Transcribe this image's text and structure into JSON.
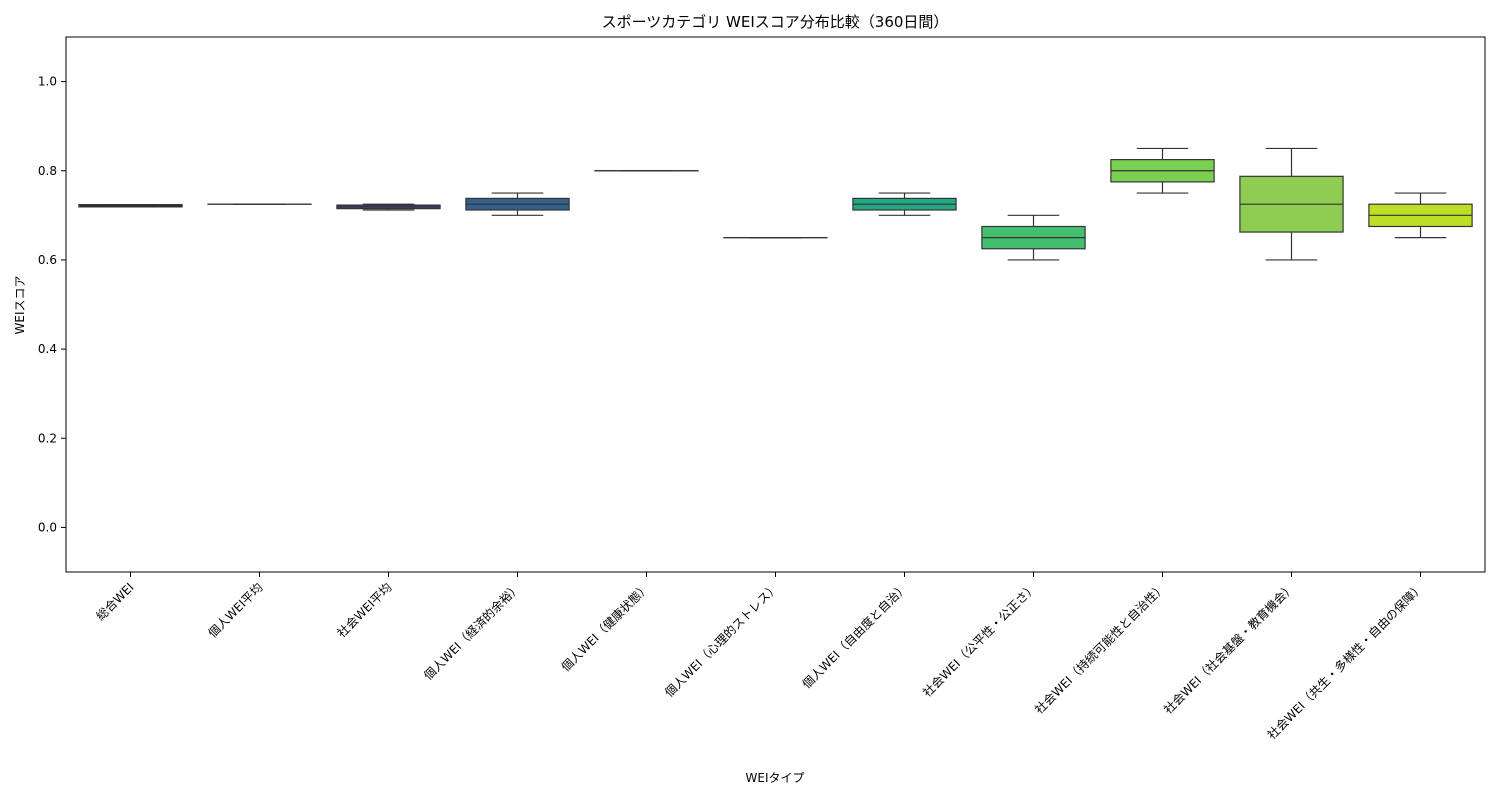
{
  "chart_data": {
    "type": "box",
    "title": "スポーツカテゴリ WEIスコア分布比較（360日間）",
    "xlabel": "WEIタイプ",
    "ylabel": "WEIスコア",
    "ylim": [
      -0.1,
      1.1
    ],
    "yticks": [
      "0.0",
      "0.2",
      "0.4",
      "0.6",
      "0.8",
      "1.0"
    ],
    "grid": false,
    "categories": [
      "総合WEI",
      "個人WEI平均",
      "社会WEI平均",
      "個人WEI（経済的余裕）",
      "個人WEI（健康状態）",
      "個人WEI（心理的ストレス）",
      "個人WEI（自由度と自治）",
      "社会WEI（公平性・公正さ）",
      "社会WEI（持続可能性と自治性）",
      "社会WEI（社会基盤・教育機会）",
      "社会WEI（共生・多様性・自由の保障）"
    ],
    "boxes": [
      {
        "whislo": 0.719,
        "q1": 0.719,
        "med": 0.722,
        "q3": 0.724,
        "whishi": 0.724,
        "color": "#440154"
      },
      {
        "whislo": 0.725,
        "q1": 0.725,
        "med": 0.725,
        "q3": 0.725,
        "whishi": 0.725,
        "color": "#482475"
      },
      {
        "whislo": 0.712,
        "q1": 0.715,
        "med": 0.719,
        "q3": 0.723,
        "whishi": 0.725,
        "color": "#414487"
      },
      {
        "whislo": 0.7,
        "q1": 0.712,
        "med": 0.725,
        "q3": 0.738,
        "whishi": 0.75,
        "color": "#355f8d"
      },
      {
        "whislo": 0.8,
        "q1": 0.8,
        "med": 0.8,
        "q3": 0.8,
        "whishi": 0.8,
        "color": "#2a788e"
      },
      {
        "whislo": 0.65,
        "q1": 0.65,
        "med": 0.65,
        "q3": 0.65,
        "whishi": 0.65,
        "color": "#21918c"
      },
      {
        "whislo": 0.7,
        "q1": 0.712,
        "med": 0.725,
        "q3": 0.738,
        "whishi": 0.75,
        "color": "#22a884"
      },
      {
        "whislo": 0.6,
        "q1": 0.625,
        "med": 0.65,
        "q3": 0.675,
        "whishi": 0.7,
        "color": "#44bf70"
      },
      {
        "whislo": 0.75,
        "q1": 0.775,
        "med": 0.8,
        "q3": 0.825,
        "whishi": 0.85,
        "color": "#7ad151"
      },
      {
        "whislo": 0.6,
        "q1": 0.6625,
        "med": 0.725,
        "q3": 0.7875,
        "whishi": 0.85,
        "color": "#8fcc52"
      },
      {
        "whislo": 0.65,
        "q1": 0.675,
        "med": 0.7,
        "q3": 0.725,
        "whishi": 0.75,
        "color": "#bddf26"
      }
    ]
  }
}
